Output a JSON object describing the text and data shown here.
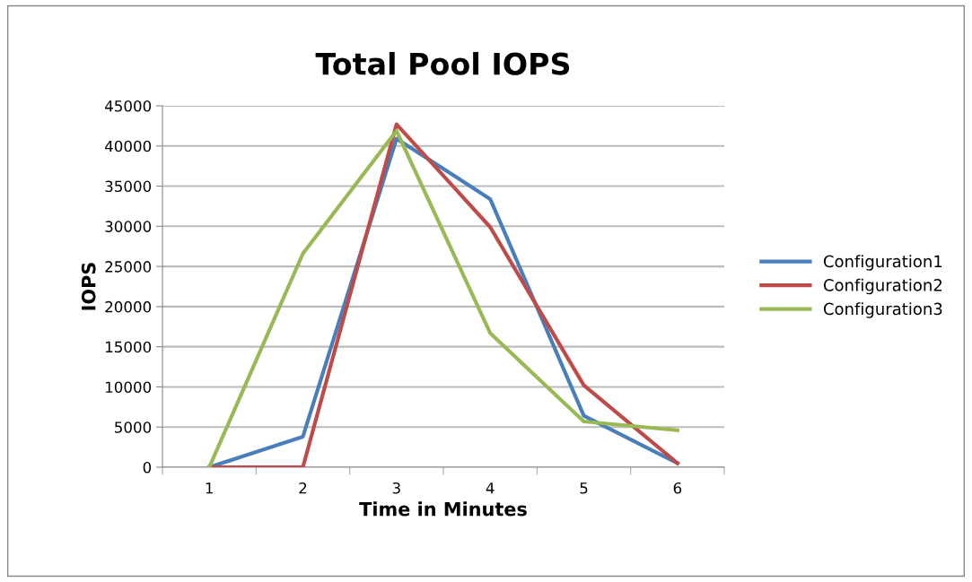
{
  "chart_data": {
    "type": "line",
    "title": "Total Pool IOPS",
    "xlabel": "Time in Minutes",
    "ylabel": "IOPS",
    "categories": [
      "1",
      "2",
      "3",
      "4",
      "5",
      "6"
    ],
    "series": [
      {
        "name": "Configuration1",
        "color": "#4a7ebb",
        "values": [
          0,
          3800,
          40900,
          33400,
          6400,
          500
        ]
      },
      {
        "name": "Configuration2",
        "color": "#be4b48",
        "values": [
          0,
          0,
          42700,
          29900,
          10200,
          500
        ]
      },
      {
        "name": "Configuration3",
        "color": "#98b954",
        "values": [
          0,
          26600,
          41900,
          16700,
          5700,
          4600
        ]
      }
    ],
    "ylim": [
      0,
      45000
    ],
    "yticks": [
      0,
      5000,
      10000,
      15000,
      20000,
      25000,
      30000,
      35000,
      40000,
      45000
    ],
    "grid": "y",
    "legend": "right",
    "marker": "none",
    "line_style": "solid"
  }
}
